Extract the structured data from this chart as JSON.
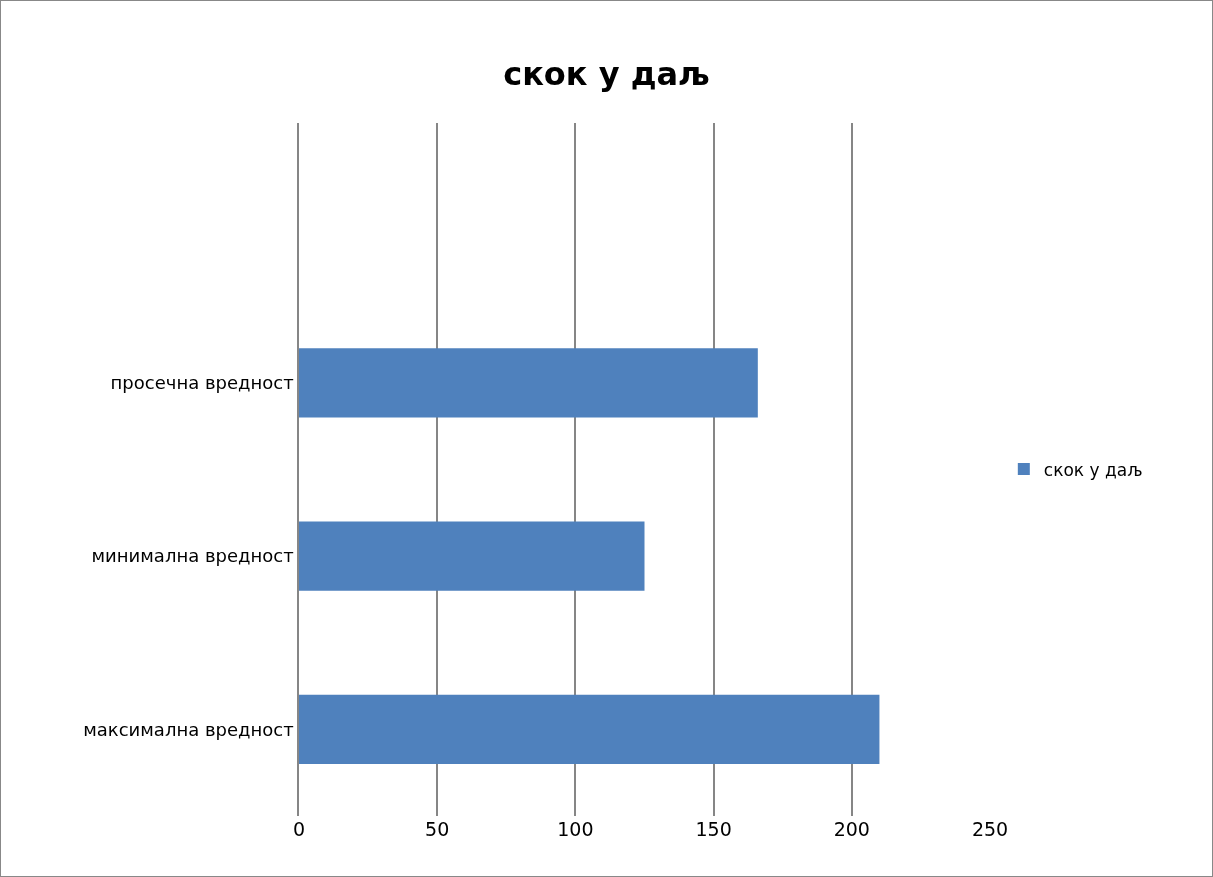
{
  "chart_data": {
    "type": "bar",
    "orientation": "horizontal",
    "title": "скок у даљ",
    "categories": [
      null,
      "просечна вредност",
      "минимална вредност",
      "максимална вредност"
    ],
    "series": [
      {
        "name": "скок у даљ",
        "color": "#4f81bd",
        "values": [
          null,
          166,
          125,
          210
        ]
      }
    ],
    "xlim": [
      0,
      250
    ],
    "xticks": [
      0,
      50,
      100,
      150,
      200,
      250
    ],
    "grid": "x",
    "legend": "right"
  }
}
